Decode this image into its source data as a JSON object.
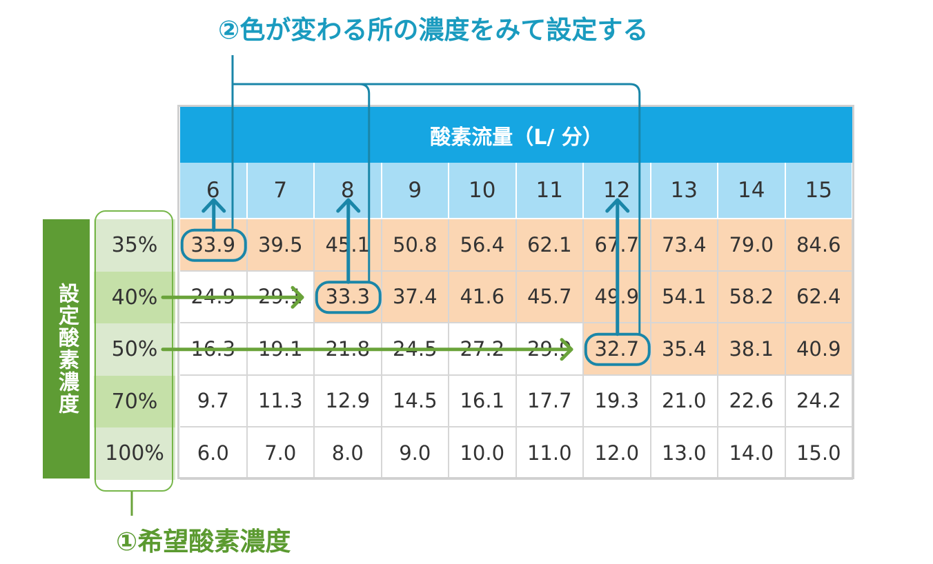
{
  "captions": {
    "top": "②色が変わる所の濃度をみて設定する",
    "bottom": "①希望酸素濃度"
  },
  "side_label": "設定酸素濃度",
  "table": {
    "header": "酸素流量（L/ 分）",
    "flows": [
      "6",
      "7",
      "8",
      "9",
      "10",
      "11",
      "12",
      "13",
      "14",
      "15"
    ],
    "rows": [
      {
        "concentration": "35%",
        "values": [
          "33.9",
          "39.5",
          "45.1",
          "50.8",
          "56.4",
          "62.1",
          "67.7",
          "73.4",
          "79.0",
          "84.6"
        ],
        "shaded_from_index": 0
      },
      {
        "concentration": "40%",
        "values": [
          "24.9",
          "29.1",
          "33.3",
          "37.4",
          "41.6",
          "45.7",
          "49.9",
          "54.1",
          "58.2",
          "62.4"
        ],
        "shaded_from_index": 2
      },
      {
        "concentration": "50%",
        "values": [
          "16.3",
          "19.1",
          "21.8",
          "24.5",
          "27.2",
          "29.9",
          "32.7",
          "35.4",
          "38.1",
          "40.9"
        ],
        "shaded_from_index": 6
      },
      {
        "concentration": "70%",
        "values": [
          "9.7",
          "11.3",
          "12.9",
          "14.5",
          "16.1",
          "17.7",
          "19.3",
          "21.0",
          "22.6",
          "24.2"
        ],
        "shaded_from_index": null
      },
      {
        "concentration": "100%",
        "values": [
          "6.0",
          "7.0",
          "8.0",
          "9.0",
          "10.0",
          "11.0",
          "12.0",
          "13.0",
          "14.0",
          "15.0"
        ],
        "shaded_from_index": null
      }
    ]
  },
  "highlights": [
    {
      "row": 0,
      "col": 0,
      "value": "33.9"
    },
    {
      "row": 1,
      "col": 2,
      "value": "33.3"
    },
    {
      "row": 2,
      "col": 6,
      "value": "32.7"
    }
  ],
  "colors": {
    "header_blue": "#16a6e2",
    "flow_row_blue": "#a8ddf5",
    "shaded_cell": "#fbd6b3",
    "side_green": "#5e9c34",
    "arrow_green": "#6aa33a",
    "callout_teal": "#1a86a8",
    "caption_teal": "#1a9bbf",
    "caption_green": "#5b9a30"
  }
}
